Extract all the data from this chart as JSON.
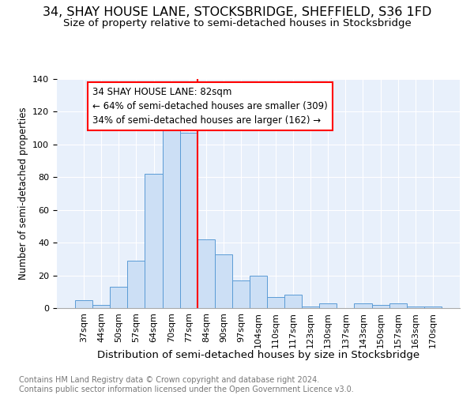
{
  "title": "34, SHAY HOUSE LANE, STOCKSBRIDGE, SHEFFIELD, S36 1FD",
  "subtitle": "Size of property relative to semi-detached houses in Stocksbridge",
  "xlabel": "Distribution of semi-detached houses by size in Stocksbridge",
  "ylabel_text": "Number of semi-detached properties",
  "footer1": "Contains HM Land Registry data © Crown copyright and database right 2024.",
  "footer2": "Contains public sector information licensed under the Open Government Licence v3.0.",
  "bar_labels": [
    "37sqm",
    "44sqm",
    "50sqm",
    "57sqm",
    "64sqm",
    "70sqm",
    "77sqm",
    "84sqm",
    "90sqm",
    "97sqm",
    "104sqm",
    "110sqm",
    "117sqm",
    "123sqm",
    "130sqm",
    "137sqm",
    "143sqm",
    "150sqm",
    "157sqm",
    "163sqm",
    "170sqm"
  ],
  "bar_values": [
    5,
    2,
    13,
    29,
    82,
    109,
    107,
    42,
    33,
    17,
    20,
    7,
    8,
    1,
    3,
    0,
    3,
    2,
    3,
    1,
    1
  ],
  "bar_color": "#ccdff5",
  "bar_edge_color": "#5b9bd5",
  "property_label": "34 SHAY HOUSE LANE: 82sqm",
  "pct_smaller": 64,
  "n_smaller": 309,
  "pct_larger": 34,
  "n_larger": 162,
  "vline_color": "red",
  "annotation_box_color": "white",
  "annotation_box_edge": "red",
  "bg_color": "#e8f0fb",
  "ylim": [
    0,
    140
  ],
  "title_fontsize": 11.5,
  "subtitle_fontsize": 9.5,
  "xlabel_fontsize": 9.5,
  "ylabel_fontsize": 8.5,
  "tick_fontsize": 8,
  "annotation_fontsize": 8.5,
  "footer_fontsize": 7
}
